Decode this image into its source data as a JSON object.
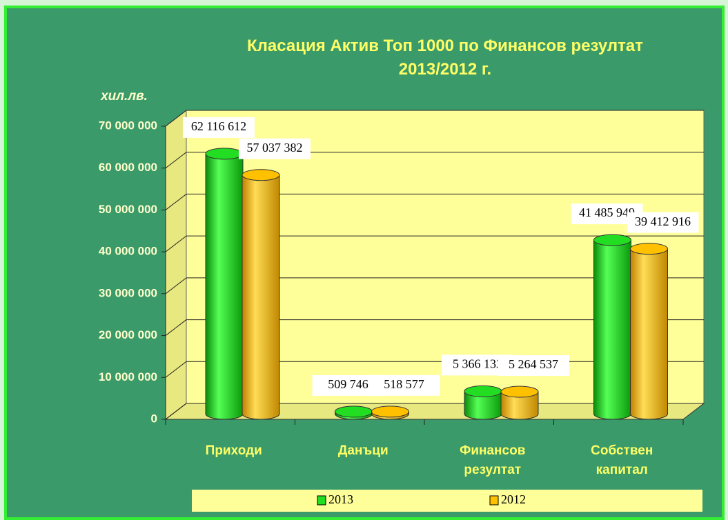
{
  "chart_data": {
    "type": "bar",
    "title": "Класация Актив Топ 1000 по Финансов резултат 2013/2012 г.",
    "y_label": "хил.лв.",
    "categories": [
      "Приходи",
      "Данъци",
      "Финансов резултат",
      "Собствен капитал"
    ],
    "series": [
      {
        "name": "2013",
        "color": "#22dd22",
        "values": [
          62116612,
          509746,
          5366132,
          41485949
        ],
        "value_labels": [
          "62 116 612",
          "509 746",
          "5 366 132",
          "41 485 949"
        ]
      },
      {
        "name": "2012",
        "color": "#ffc000",
        "values": [
          57037382,
          518577,
          5264537,
          39412916
        ],
        "value_labels": [
          "57 037 382",
          "518 577",
          "5 264 537",
          "39 412 916"
        ]
      }
    ],
    "ylim": [
      0,
      70000000
    ],
    "yticks": [
      {
        "value": 0,
        "label": "0"
      },
      {
        "value": 10000000,
        "label": "10 000 000"
      },
      {
        "value": 20000000,
        "label": "20 000 000"
      },
      {
        "value": 30000000,
        "label": "30 000 000"
      },
      {
        "value": 40000000,
        "label": "40 000 000"
      },
      {
        "value": 50000000,
        "label": "50 000 000"
      },
      {
        "value": 60000000,
        "label": "60 000 000"
      },
      {
        "value": 70000000,
        "label": "70 000 000"
      }
    ],
    "grid": true,
    "legend": "bottom"
  }
}
